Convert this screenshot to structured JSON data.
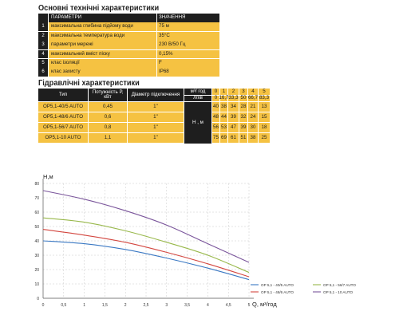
{
  "section1": {
    "title": "Основні технічні характеристики",
    "header": {
      "param": "ПАРАМЕТРИ",
      "value": "ЗНАЧЕННЯ"
    },
    "rows": [
      {
        "num": "1",
        "param": "максимальна глибина підйому води",
        "value": "75 м"
      },
      {
        "num": "2",
        "param": "максимальна температура води",
        "value": "35°С"
      },
      {
        "num": "3",
        "param": "параметри мережі",
        "value": "230 В/50 Гц"
      },
      {
        "num": "4",
        "param": "максимальний вміст піску",
        "value": "0,15%"
      },
      {
        "num": "5",
        "param": "клас ізоляції",
        "value": "F"
      },
      {
        "num": "6",
        "param": "клас захисту",
        "value": "IP68"
      }
    ]
  },
  "section2": {
    "title": "Гідравлічні характеристики",
    "headers": {
      "type": "Тип",
      "power": "Потужність Р, кВт",
      "diameter": "Діаметр підключення",
      "unit_q1": "м³/ год",
      "unit_q2": "л/хв",
      "h_label": "Н , м"
    },
    "q_m3h": [
      "0",
      "1",
      "2",
      "3",
      "4",
      "5"
    ],
    "q_lmin": [
      "0",
      "16,7",
      "33,3",
      "50",
      "66,7",
      "83,3"
    ],
    "models": [
      {
        "type": "OP5,1-40/5 AUTO",
        "power": "0,45",
        "diameter": "1\"",
        "h": [
          "40",
          "38",
          "34",
          "28",
          "21",
          "13"
        ]
      },
      {
        "type": "OP5,1-48/6 AUTO",
        "power": "0,6",
        "diameter": "1\"",
        "h": [
          "48",
          "44",
          "39",
          "32",
          "24",
          "15"
        ]
      },
      {
        "type": "OP5,1-56/7 AUTO",
        "power": "0,8",
        "diameter": "1\"",
        "h": [
          "56",
          "53",
          "47",
          "39",
          "30",
          "18"
        ]
      },
      {
        "type": "OP5,1-10 AUTO",
        "power": "1,1",
        "diameter": "1\"",
        "h": [
          "75",
          "69",
          "61",
          "51",
          "38",
          "25"
        ]
      }
    ]
  },
  "chart_data": {
    "type": "line",
    "ylabel": "H,м",
    "xlabel": "Q, м³/год",
    "xlim": [
      0,
      5
    ],
    "ylim": [
      0,
      80
    ],
    "x_ticks": [
      "0",
      "0,5",
      "1",
      "1,5",
      "2",
      "2,5",
      "3",
      "3,5",
      "4",
      "4,5",
      "5"
    ],
    "y_ticks": [
      "0",
      "10",
      "20",
      "30",
      "40",
      "50",
      "60",
      "70",
      "80"
    ],
    "grid": true,
    "legend": "bottom-right",
    "x": [
      0,
      1,
      2,
      3,
      4,
      5
    ],
    "series": [
      {
        "name": "OP 5,1 - 40/5 AUTO",
        "color": "#3a78c3",
        "values": [
          40,
          38,
          34,
          28,
          21,
          13
        ]
      },
      {
        "name": "OP 5,1 - 48/6 AUTO",
        "color": "#d3463f",
        "values": [
          48,
          44,
          39,
          32,
          24,
          15
        ]
      },
      {
        "name": "OP 5,1 - 56/7 AUTO",
        "color": "#98b84a",
        "values": [
          56,
          53,
          47,
          39,
          30,
          18
        ]
      },
      {
        "name": "OP 5,1 - 10 AUTO",
        "color": "#7a559b",
        "values": [
          75,
          69,
          61,
          51,
          38,
          25
        ]
      }
    ]
  }
}
